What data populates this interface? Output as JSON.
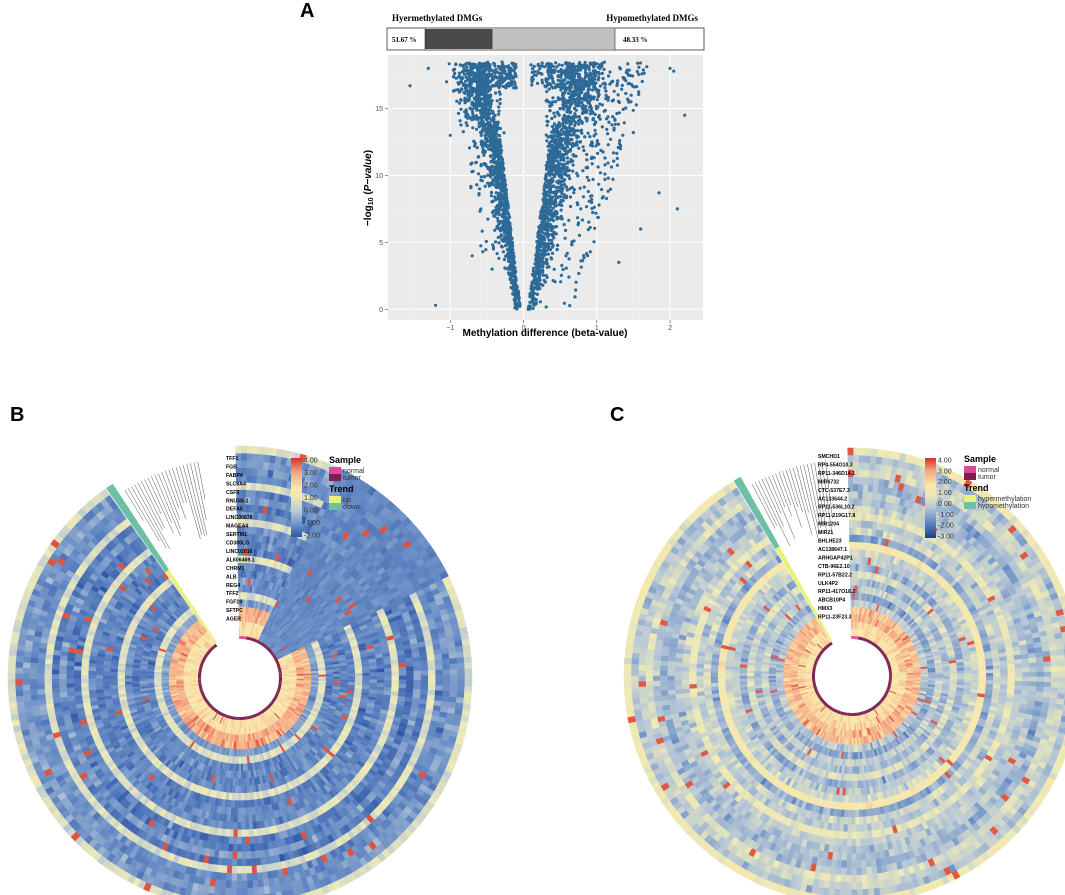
{
  "panels": {
    "a": "A",
    "b": "B",
    "c": "C"
  },
  "chart_data": [
    {
      "type": "scatter",
      "panel": "A",
      "title": "",
      "xlabel": "Methylation difference (beta-value)",
      "ylabel_prefix": "−log",
      "ylabel_sub": "10",
      "ylabel_open": " (",
      "ylabel_italic": "P−value",
      "ylabel_close": ")",
      "xlim": [
        -1.85,
        2.45
      ],
      "ylim": [
        -0.8,
        19.0
      ],
      "x_ticks": [
        -1,
        0,
        1,
        2
      ],
      "x_tick_labels": [
        "−1",
        "0",
        "1",
        "2"
      ],
      "y_ticks": [
        0,
        5,
        10,
        15
      ],
      "y_tick_labels": [
        "0",
        "5",
        "10",
        "15"
      ],
      "grid": true,
      "point_color": "#2d6a97",
      "n_points_approx": 6000,
      "outliers": [
        {
          "x": -1.55,
          "y": 16.7
        },
        {
          "x": -1.3,
          "y": 18.0
        },
        {
          "x": -1.05,
          "y": 17.0
        },
        {
          "x": -1.0,
          "y": 13.0
        },
        {
          "x": -0.6,
          "y": 9.0
        },
        {
          "x": -0.7,
          "y": 4.0
        },
        {
          "x": -1.2,
          "y": 0.3
        },
        {
          "x": 1.5,
          "y": 13.2
        },
        {
          "x": 1.85,
          "y": 8.7
        },
        {
          "x": 2.0,
          "y": 18.0
        },
        {
          "x": 2.1,
          "y": 7.5
        },
        {
          "x": 2.2,
          "y": 14.5
        },
        {
          "x": 1.6,
          "y": 6.0
        },
        {
          "x": 1.3,
          "y": 3.5
        },
        {
          "x": 2.05,
          "y": 17.8
        }
      ],
      "bar": {
        "left_label": "Hyermethylated DMGs",
        "right_label": "Hypomethylated DMGs",
        "left_percent": "51.67 %",
        "right_percent": "48.33 %",
        "left_value": 51.67,
        "right_value": 48.33,
        "dark_color": "#4a4a4a",
        "light_color": "#c0c0c0"
      }
    },
    {
      "type": "heatmap",
      "layout": "circular",
      "panel": "B",
      "genes": [
        "TFF1",
        "FGB",
        "FABP4",
        "SLC6A4",
        "CSF3",
        "RNU5B-1",
        "DEFA5",
        "LINC00678",
        "MAGEA4",
        "SERTM1",
        "CD300LG",
        "LINC02016",
        "AL606469.1",
        "CHRM1",
        "ALB",
        "REG4",
        "TFF2",
        "FGF19",
        "SFTPC",
        "AGER"
      ],
      "color_scale": {
        "ticks": [
          "4.00",
          "3.00",
          "2.00",
          "1.00",
          "0.00",
          "-1.00",
          "-2.00"
        ],
        "colors": [
          "#d7301f",
          "#f4a582",
          "#fbe7a7",
          "#ece9b8",
          "#b7c7d6",
          "#6b8fc6",
          "#2e55a8"
        ]
      },
      "legend": {
        "sample_title": "Sample",
        "sample_items": [
          {
            "label": "normal",
            "color": "#d94a9c"
          },
          {
            "label": "tumor",
            "color": "#7a1f4f"
          }
        ],
        "trend_title": "Trend",
        "trend_items": [
          {
            "label": "up",
            "color": "#e8f27a"
          },
          {
            "label": "down",
            "color": "#6dbfa7"
          }
        ]
      },
      "dominant": "blue"
    },
    {
      "type": "heatmap",
      "layout": "circular",
      "panel": "C",
      "genes": [
        "SMCHD1",
        "RP4-554O10.3",
        "RP11-346D14.1",
        "MIR6732",
        "CTC-537E7.3",
        "AC133644.2",
        "RP11-536L10.2",
        "RP11-219G17.8",
        "MIR1204",
        "MIR21",
        "BHLHE23",
        "AC138647.1",
        "ARHGAP42P1",
        "CTB-96E2.10",
        "RP11-57B22.2",
        "ULK4P2",
        "RP11-417O18.2",
        "ABCB10P4",
        "HMX3",
        "RP11-23F23.3"
      ],
      "color_scale": {
        "ticks": [
          "4.00",
          "3.00",
          "2.00",
          "1.00",
          "0.00",
          "-1.00",
          "-2.00",
          "-3.00"
        ],
        "colors": [
          "#d7301f",
          "#f4a582",
          "#fbe7a7",
          "#ece9b8",
          "#b7c7d6",
          "#6b8fc6",
          "#2e55a8",
          "#1f3f8f"
        ]
      },
      "legend": {
        "sample_title": "Sample",
        "sample_items": [
          {
            "label": "normal",
            "color": "#d94a9c"
          },
          {
            "label": "tumor",
            "color": "#7a1f4f"
          }
        ],
        "trend_title": "Trend",
        "trend_items": [
          {
            "label": "hypermethylation",
            "color": "#e8f27a"
          },
          {
            "label": "hypomethylation",
            "color": "#6dbfa7"
          }
        ]
      },
      "dominant": "mixed"
    }
  ]
}
